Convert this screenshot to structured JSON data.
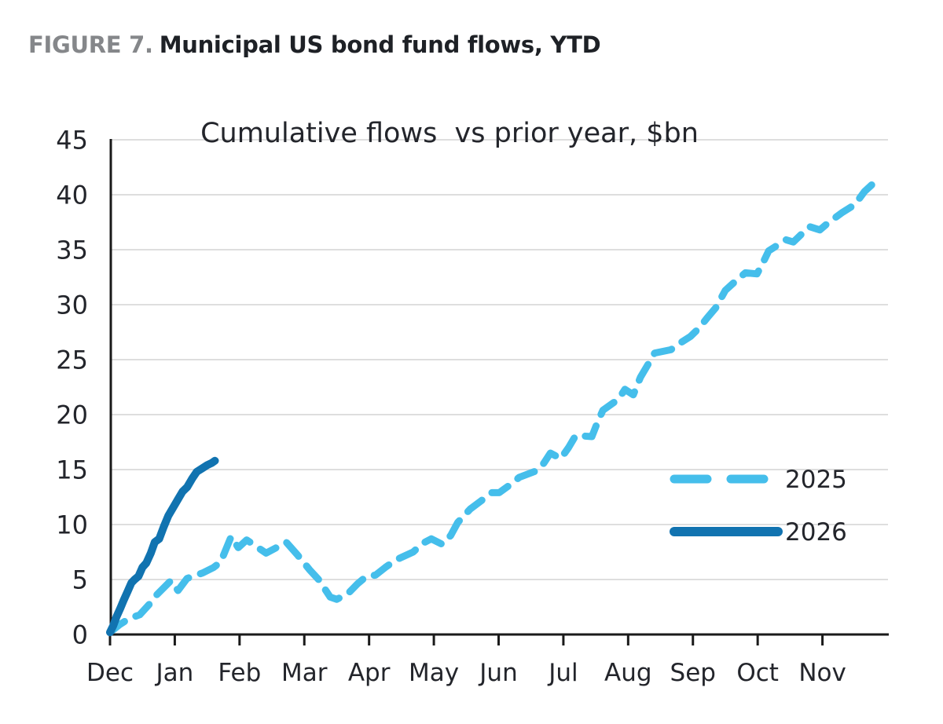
{
  "figure": {
    "label": "FIGURE 7.",
    "title": "Municipal US bond fund flows, YTD"
  },
  "chart_data": {
    "type": "line",
    "title": "Cumulative flows  vs prior year, $bn",
    "x_axis": {
      "categories": [
        "Dec",
        "Jan",
        "Feb",
        "Mar",
        "Apr",
        "May",
        "Jun",
        "Jul",
        "Aug",
        "Sep",
        "Oct",
        "Nov"
      ],
      "unit": "months since Dec 1",
      "range": [
        0,
        12
      ]
    },
    "y_axis": {
      "min": 0,
      "max": 45,
      "step": 5,
      "ticks": [
        0,
        5,
        10,
        15,
        20,
        25,
        30,
        35,
        40,
        45
      ]
    },
    "grid": true,
    "legend_position": "right-middle",
    "series": [
      {
        "name": "2025",
        "style": "dashed",
        "color": "#45BEEB",
        "points": [
          [
            0,
            0.2
          ],
          [
            0.15,
            0.9
          ],
          [
            0.28,
            1.4
          ],
          [
            0.46,
            1.8
          ],
          [
            0.6,
            2.7
          ],
          [
            0.72,
            3.6
          ],
          [
            0.94,
            4.9
          ],
          [
            1.05,
            4.0
          ],
          [
            1.19,
            5.1
          ],
          [
            1.43,
            5.6
          ],
          [
            1.6,
            6.1
          ],
          [
            1.71,
            6.6
          ],
          [
            1.87,
            8.9
          ],
          [
            1.98,
            7.9
          ],
          [
            2.11,
            8.6
          ],
          [
            2.41,
            7.4
          ],
          [
            2.57,
            7.9
          ],
          [
            2.72,
            8.4
          ],
          [
            2.9,
            7.2
          ],
          [
            3.08,
            5.9
          ],
          [
            3.22,
            5.0
          ],
          [
            3.4,
            3.4
          ],
          [
            3.5,
            3.2
          ],
          [
            3.67,
            3.7
          ],
          [
            3.82,
            4.6
          ],
          [
            3.96,
            5.3
          ],
          [
            4.1,
            5.4
          ],
          [
            4.25,
            6.1
          ],
          [
            4.42,
            6.8
          ],
          [
            4.68,
            7.5
          ],
          [
            4.83,
            8.3
          ],
          [
            4.96,
            8.7
          ],
          [
            5.13,
            8.2
          ],
          [
            5.26,
            9.0
          ],
          [
            5.37,
            10.2
          ],
          [
            5.56,
            11.4
          ],
          [
            5.74,
            12.2
          ],
          [
            5.89,
            12.9
          ],
          [
            6.01,
            12.9
          ],
          [
            6.15,
            13.5
          ],
          [
            6.32,
            14.3
          ],
          [
            6.59,
            14.9
          ],
          [
            6.7,
            15.6
          ],
          [
            6.8,
            16.5
          ],
          [
            6.96,
            16.0
          ],
          [
            7.08,
            17.0
          ],
          [
            7.19,
            18.1
          ],
          [
            7.44,
            18.0
          ],
          [
            7.52,
            19.2
          ],
          [
            7.61,
            20.4
          ],
          [
            7.85,
            21.4
          ],
          [
            7.95,
            22.3
          ],
          [
            8.08,
            21.8
          ],
          [
            8.19,
            23.4
          ],
          [
            8.3,
            24.5
          ],
          [
            8.41,
            25.6
          ],
          [
            8.66,
            25.9
          ],
          [
            8.8,
            26.5
          ],
          [
            8.96,
            27.1
          ],
          [
            9.1,
            27.9
          ],
          [
            9.22,
            28.8
          ],
          [
            9.35,
            29.7
          ],
          [
            9.5,
            31.3
          ],
          [
            9.65,
            32.1
          ],
          [
            9.81,
            32.9
          ],
          [
            9.99,
            32.8
          ],
          [
            10.08,
            33.8
          ],
          [
            10.17,
            34.9
          ],
          [
            10.44,
            35.9
          ],
          [
            10.55,
            35.7
          ],
          [
            10.8,
            37.1
          ],
          [
            10.96,
            36.8
          ],
          [
            11.1,
            37.5
          ],
          [
            11.31,
            38.4
          ],
          [
            11.5,
            39.1
          ],
          [
            11.65,
            40.3
          ],
          [
            11.78,
            41.0
          ]
        ]
      },
      {
        "name": "2026",
        "style": "solid",
        "color": "#1173B0",
        "points": [
          [
            0,
            0.2
          ],
          [
            0.05,
            0.8
          ],
          [
            0.1,
            1.6
          ],
          [
            0.16,
            2.4
          ],
          [
            0.21,
            3.1
          ],
          [
            0.27,
            3.9
          ],
          [
            0.33,
            4.7
          ],
          [
            0.38,
            5.0
          ],
          [
            0.44,
            5.3
          ],
          [
            0.5,
            6.1
          ],
          [
            0.56,
            6.5
          ],
          [
            0.63,
            7.4
          ],
          [
            0.69,
            8.4
          ],
          [
            0.76,
            8.7
          ],
          [
            0.83,
            9.8
          ],
          [
            0.9,
            10.8
          ],
          [
            0.98,
            11.6
          ],
          [
            1.05,
            12.3
          ],
          [
            1.12,
            13.0
          ],
          [
            1.19,
            13.4
          ],
          [
            1.27,
            14.2
          ],
          [
            1.34,
            14.8
          ],
          [
            1.42,
            15.1
          ],
          [
            1.5,
            15.4
          ],
          [
            1.57,
            15.6
          ],
          [
            1.62,
            15.8
          ]
        ]
      }
    ],
    "colors": {
      "grid": "#D9D9D9",
      "axis": "#1A1A1A",
      "tick_text": "#23252B",
      "figure_label_gray": "#85878A",
      "heading_text": "#1E2126"
    }
  }
}
